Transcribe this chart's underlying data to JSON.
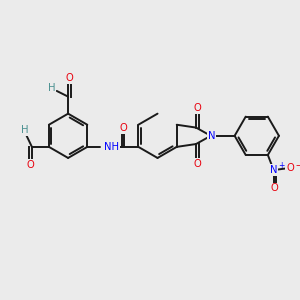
{
  "bg_color": "#ebebeb",
  "bond_color": "#1a1a1a",
  "lw": 1.4,
  "fs": 7.2,
  "figsize": [
    3.0,
    3.0
  ],
  "dpi": 100,
  "colors": {
    "O": "#e8000d",
    "N": "#0000ff",
    "H": "#4a9090",
    "C": "#1a1a1a"
  },
  "xlim": [
    0,
    10
  ],
  "ylim": [
    0,
    10
  ]
}
